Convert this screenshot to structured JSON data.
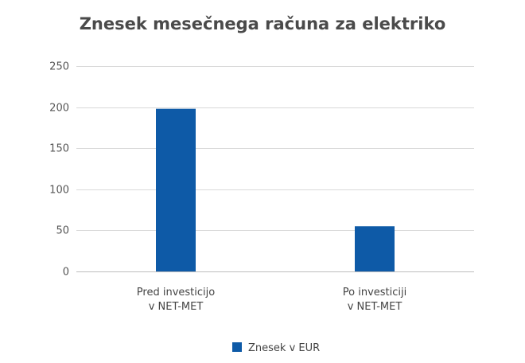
{
  "chart_data": {
    "type": "bar",
    "title": "Znesek mesečnega računa za elektriko",
    "categories": [
      [
        "Pred investicijo",
        "v NET-MET"
      ],
      [
        "Po investiciji",
        "v NET-MET"
      ]
    ],
    "series": [
      {
        "name": "Znesek v EUR",
        "values": [
          198,
          55
        ],
        "color": "#0e5aa7"
      }
    ],
    "ylim": [
      0,
      250
    ],
    "yticks": [
      0,
      50,
      100,
      150,
      200,
      250
    ],
    "grid": true,
    "legend": "bottom",
    "xlabel": "",
    "ylabel": ""
  }
}
